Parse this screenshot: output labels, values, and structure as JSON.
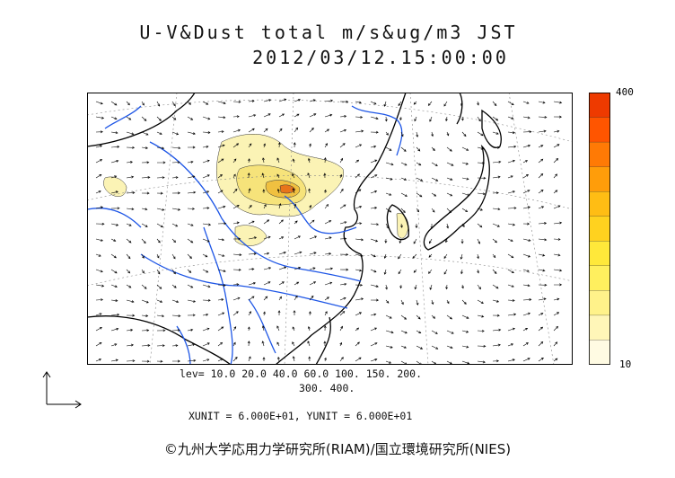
{
  "title_line1": "U-V&Dust total m/s&ug/m3 JST",
  "title_line2": "2012/03/12.15:00:00",
  "levels_line1": "lev= 10.0 20.0 40.0 60.0 100. 150. 200.",
  "levels_line2": "300. 400.",
  "units_line": "XUNIT = 6.000E+01, YUNIT = 6.000E+01",
  "colorbar": {
    "max_label": "400",
    "min_label": "10",
    "levels": [
      10,
      20,
      40,
      60,
      100,
      150,
      200,
      300,
      400
    ],
    "colors": [
      "#fffbe3",
      "#fff6b8",
      "#fff28a",
      "#ffef5e",
      "#ffe83a",
      "#ffd21f",
      "#ffbd14",
      "#ff9d0a",
      "#ff7a05",
      "#ff5500",
      "#ee3a00"
    ]
  },
  "copyright": "©九州大学応用力学研究所(RIAM)/国立環境研究所(NIES)",
  "map_colors": {
    "coast": "#000000",
    "rivers": "#1e56e6",
    "dust_light": "#fbf3b5",
    "dust_mid": "#f6e37a",
    "dust_core": "#e8741a"
  }
}
